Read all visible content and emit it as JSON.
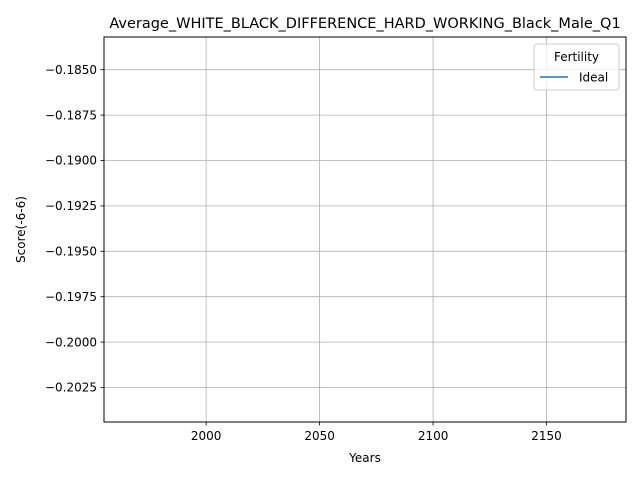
{
  "chart_data": {
    "type": "line",
    "title": "Average_WHITE_BLACK_DIFFERENCE_HARD_WORKING_Black_Male_Q1",
    "xlabel": "Years",
    "ylabel": "Score(-6-6)",
    "xlim": [
      1955,
      2185
    ],
    "ylim": [
      -0.2044,
      -0.1832
    ],
    "x_ticks": [
      2000,
      2050,
      2100,
      2150
    ],
    "x_tick_labels": [
      "2000",
      "2050",
      "2100",
      "2150"
    ],
    "y_ticks": [
      -0.185,
      -0.1875,
      -0.19,
      -0.1925,
      -0.195,
      -0.1975,
      -0.2,
      -0.2025
    ],
    "y_tick_labels": [
      "−0.1850",
      "−0.1875",
      "−0.1900",
      "−0.1925",
      "−0.1950",
      "−0.1975",
      "−0.2000",
      "−0.2025"
    ],
    "grid": true,
    "legend": {
      "title": "Fertility",
      "placement": "top-right"
    },
    "series": [
      {
        "name": "Ideal",
        "color": "#1f77b4",
        "x": [],
        "y": []
      }
    ]
  }
}
